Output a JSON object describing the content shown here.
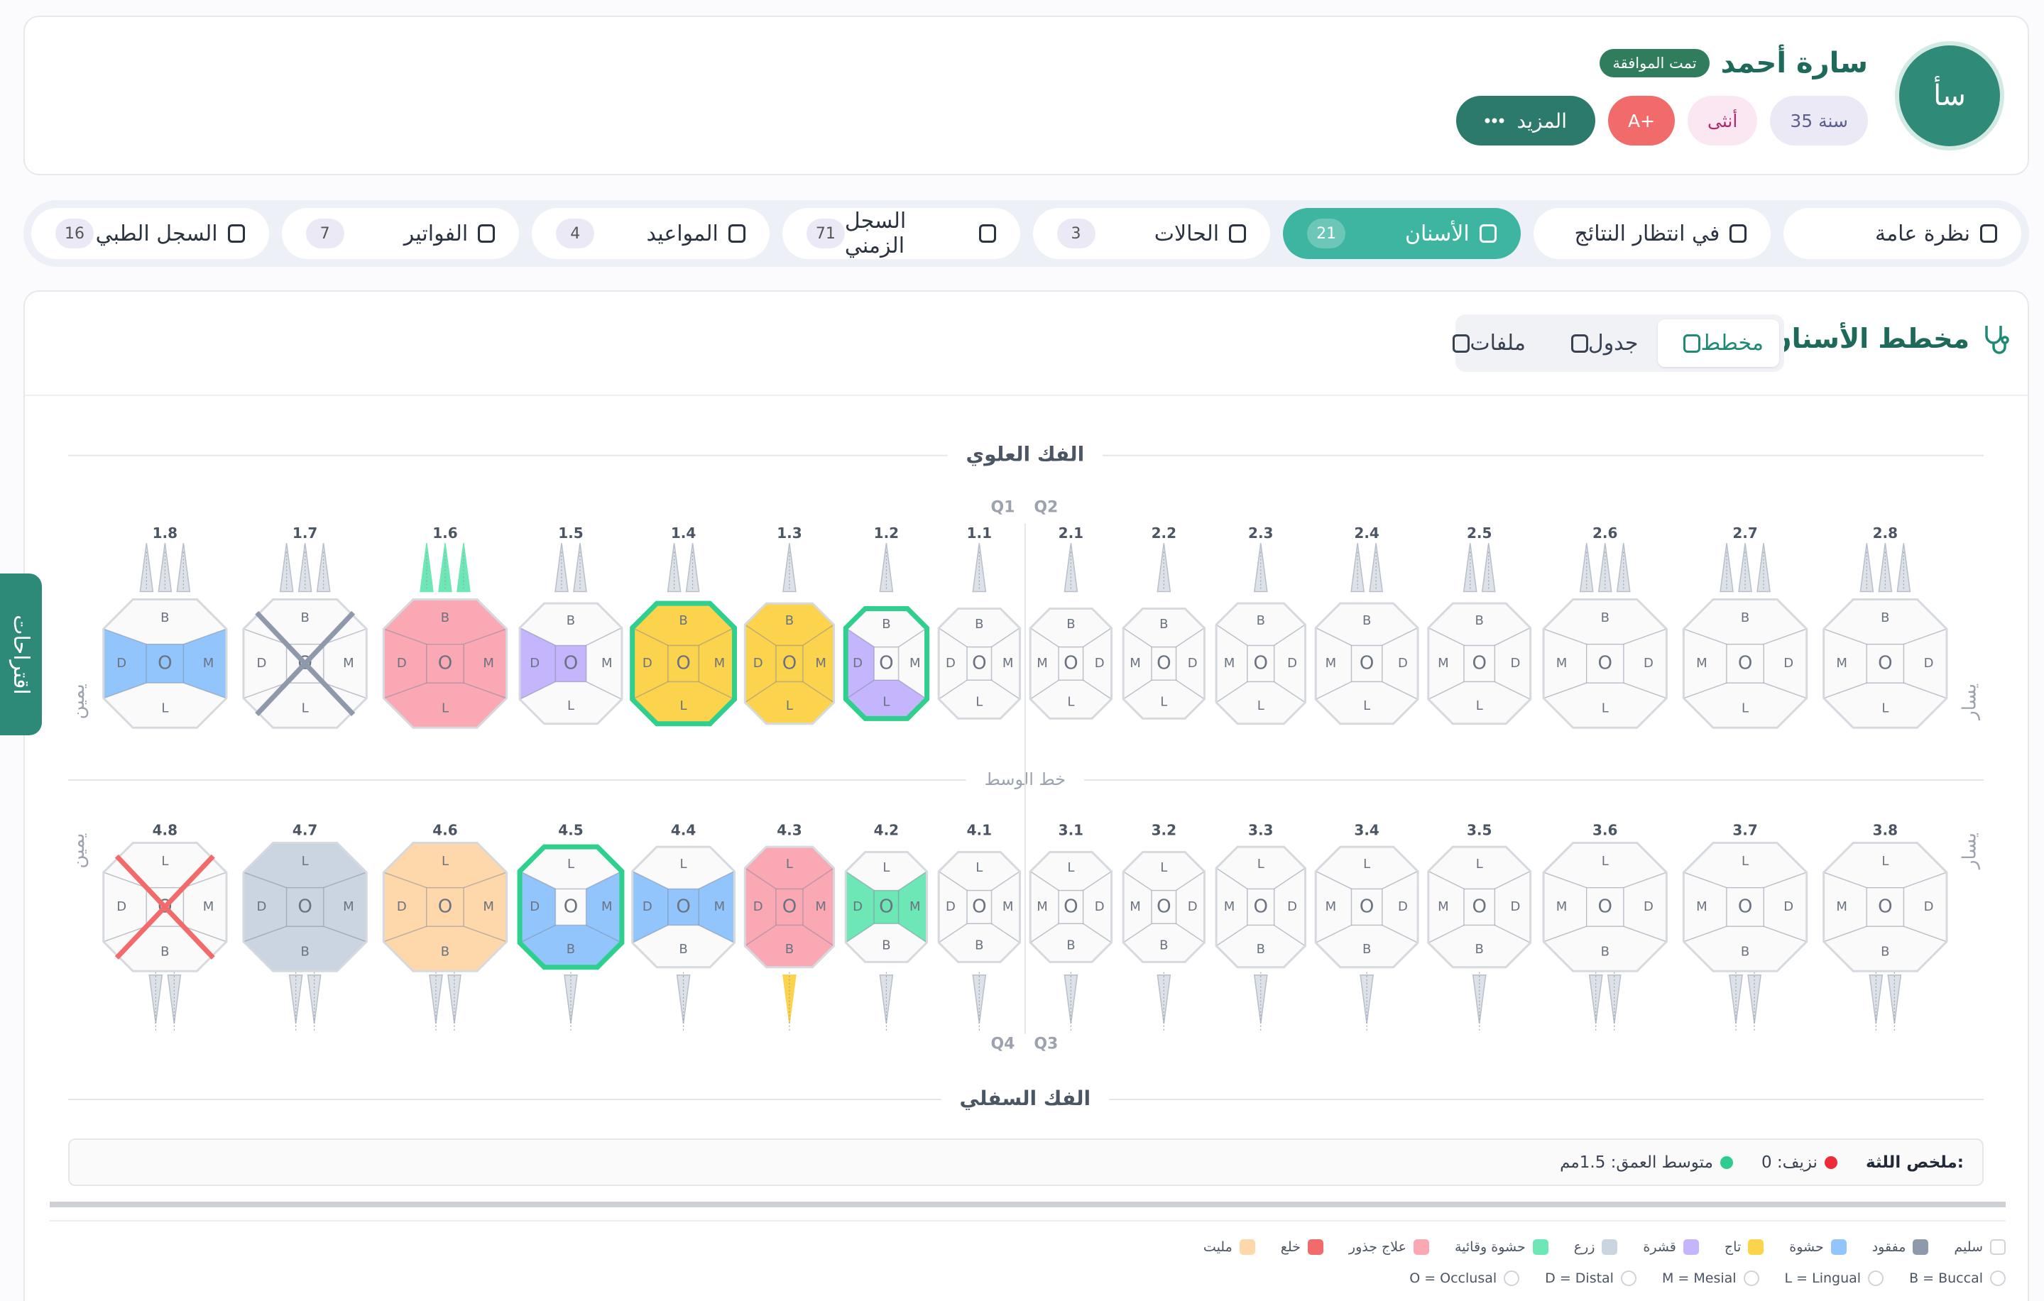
{
  "header": {
    "initials": "سأ",
    "name": "سارة أحمد",
    "status": "تمت الموافقة",
    "badges": [
      "35 سنة",
      "أنثى",
      "A+"
    ],
    "more": "المزيد"
  },
  "side_tab": "اقتراحات",
  "tabs": [
    {
      "label": "نظرة عامة"
    },
    {
      "label": "في انتظار النتائج"
    },
    {
      "label": "الأسنان",
      "count": 21,
      "active": true
    },
    {
      "label": "الحالات",
      "count": 3
    },
    {
      "label": "السجل الزمني",
      "count": 71
    },
    {
      "label": "المواعيد",
      "count": 4
    },
    {
      "label": "الفواتير",
      "count": 7
    },
    {
      "label": "السجل الطبي",
      "count": 16
    }
  ],
  "panel": {
    "title": "مخطط الأسنان",
    "views": [
      {
        "label": "مخطط",
        "active": true
      },
      {
        "label": "جدول"
      },
      {
        "label": "ملفات"
      }
    ]
  },
  "chart": {
    "upper_label": "الفك العلوي",
    "midline_label": "خط الوسط",
    "lower_label": "الفك السفلي",
    "quadrants": [
      "Q1",
      "Q2",
      "Q3",
      "Q4"
    ],
    "side_labels": {
      "right": "يمين",
      "left": "يسار"
    },
    "surface_letters": [
      "B",
      "L",
      "D",
      "O",
      "M"
    ],
    "upper_teeth": [
      {
        "number": "1.8",
        "condition": "حشوة",
        "surfaces": [
          "D",
          "O",
          "M"
        ]
      },
      {
        "number": "1.7",
        "condition": "مفقود"
      },
      {
        "number": "1.6",
        "condition": "علاج جذور",
        "root_color": "#6ee7b7"
      },
      {
        "number": "1.5",
        "condition": "قشرة",
        "surfaces": [
          "D",
          "O"
        ]
      },
      {
        "number": "1.4",
        "condition": "تاج",
        "highlight": true
      },
      {
        "number": "1.3",
        "condition": "تاج"
      },
      {
        "number": "1.2",
        "condition": "قشرة",
        "surfaces": [
          "D",
          "L"
        ],
        "highlight": true
      },
      {
        "number": "1.1",
        "condition": "سليم"
      },
      {
        "number": "2.1",
        "condition": "سليم"
      },
      {
        "number": "2.2",
        "condition": "سليم"
      },
      {
        "number": "2.3",
        "condition": "سليم"
      },
      {
        "number": "2.4",
        "condition": "سليم"
      },
      {
        "number": "2.5",
        "condition": "سليم"
      },
      {
        "number": "2.6",
        "condition": "سليم"
      },
      {
        "number": "2.7",
        "condition": "سليم"
      },
      {
        "number": "2.8",
        "condition": "سليم"
      }
    ],
    "lower_teeth": [
      {
        "number": "4.8",
        "condition": "خلع"
      },
      {
        "number": "4.7",
        "condition": "زرع"
      },
      {
        "number": "4.6",
        "condition": "مليت"
      },
      {
        "number": "4.5",
        "condition": "حشوة",
        "surfaces": [
          "D",
          "M",
          "B"
        ],
        "highlight": true
      },
      {
        "number": "4.4",
        "condition": "حشوة",
        "surfaces": [
          "D",
          "O",
          "M"
        ]
      },
      {
        "number": "4.3",
        "condition": "علاج جذور",
        "root_color": "#fcd34d"
      },
      {
        "number": "4.2",
        "condition": "حشوة وقائية",
        "surfaces": [
          "D",
          "O",
          "M"
        ]
      },
      {
        "number": "4.1",
        "condition": "سليم"
      },
      {
        "number": "3.1",
        "condition": "سليم"
      },
      {
        "number": "3.2",
        "condition": "سليم"
      },
      {
        "number": "3.3",
        "condition": "سليم"
      },
      {
        "number": "3.4",
        "condition": "سليم"
      },
      {
        "number": "3.5",
        "condition": "سليم"
      },
      {
        "number": "3.6",
        "condition": "سليم"
      },
      {
        "number": "3.7",
        "condition": "سليم"
      },
      {
        "number": "3.8",
        "condition": "سليم"
      }
    ]
  },
  "perio_summary": {
    "title": "ملخص اللثة:",
    "items": [
      {
        "text": "نزيف: 0",
        "color": "#ef2a3a"
      },
      {
        "text": "متوسط العمق: 1.5مم",
        "color": "#2ecc8f"
      }
    ]
  },
  "legend": {
    "conditions": [
      {
        "label": "سليم",
        "color": "#ffffff"
      },
      {
        "label": "مفقود",
        "color": "#8e99ab"
      },
      {
        "label": "حشوة",
        "color": "#93c5fd"
      },
      {
        "label": "تاج",
        "color": "#fcd34d"
      },
      {
        "label": "قشرة",
        "color": "#c4b5fd"
      },
      {
        "label": "زرع",
        "color": "#cbd5e1"
      },
      {
        "label": "حشوة وقائية",
        "color": "#6ee7b7"
      },
      {
        "label": "علاج جذور",
        "color": "#f9a8b4"
      },
      {
        "label": "خلع",
        "color": "#f26b6b"
      },
      {
        "label": "مليت",
        "color": "#fed7aa"
      }
    ],
    "surfaces": [
      "B = Buccal",
      "L = Lingual",
      "M = Mesial",
      "D = Distal",
      "O = Occlusal"
    ]
  }
}
